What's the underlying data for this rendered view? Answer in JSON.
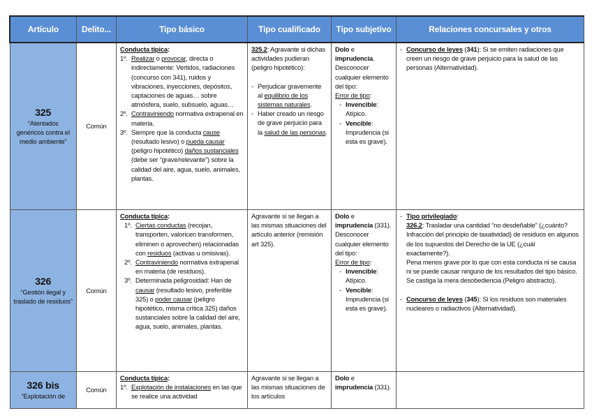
{
  "headers": [
    "Artículo",
    "Delito...",
    "Tipo básico",
    "Tipo cualificado",
    "Tipo subjetivo",
    "Relaciones concursales y otros"
  ],
  "colors": {
    "header_bg": "#5a8fd6",
    "article_bg": "#8db3e2"
  },
  "rows": [
    {
      "article": "325",
      "title": "“Atentados genéricos contra el medio ambiente”",
      "delito": "Común",
      "basico": [
        {
          "segs": [
            {
              "t": "Conducta típica",
              "u": 1,
              "b": 1
            },
            {
              "t": ":",
              "b": 1
            }
          ]
        },
        {
          "mk": "1º.",
          "segs": [
            {
              "t": "Realizar",
              "u": 1
            },
            {
              "t": " o "
            },
            {
              "t": "provocar",
              "u": 1
            },
            {
              "t": ", directa o indirectamente: Vertidos, radiaciones (concurso con 341), ruidos y vibraciones, inyecciones, depósitos, captaciones de aguas… sobre atmósfera, suelo, subsuelo, aguas…"
            }
          ]
        },
        {
          "mk": "2º.",
          "segs": [
            {
              "t": "Contraviniendo",
              "u": 1
            },
            {
              "t": " normativa extrapenal en materia."
            }
          ]
        },
        {
          "mk": "3º.",
          "segs": [
            {
              "t": "Siempre que la conducta "
            },
            {
              "t": "cause",
              "u": 1
            },
            {
              "t": " (resultado lesivo) o "
            },
            {
              "t": "pueda causar",
              "u": 1
            },
            {
              "t": " (peligro hipotético) "
            },
            {
              "t": "daños sustanciales",
              "u": 1
            },
            {
              "t": " (debe ser “grave/relevante”) sobre la calidad del aire, agua, suelo, animales, plantas."
            }
          ]
        }
      ],
      "cualificado": [
        {
          "segs": [
            {
              "t": "325.2",
              "u": 1,
              "b": 1
            },
            {
              "t": ": Agravante si dichas actividades pudieran (peligro hipotético):"
            }
          ]
        },
        {
          "gap": 1
        },
        {
          "mk": "-",
          "segs": [
            {
              "t": "Perjudicar gravemente al "
            },
            {
              "t": "equilibrio de los sistemas naturales",
              "u": 1
            },
            {
              "t": "."
            }
          ]
        },
        {
          "mk": "-",
          "segs": [
            {
              "t": "Haber creado un riesgo de grave perjuicio para la "
            },
            {
              "t": "salud de las personas",
              "u": 1
            },
            {
              "t": "."
            }
          ]
        }
      ],
      "subjetivo": [
        {
          "segs": [
            {
              "t": "Dolo",
              "b": 1
            },
            {
              "t": " e "
            },
            {
              "t": "imprudencia",
              "b": 1
            },
            {
              "t": ". Desconocer cualquier elemento del tipo:"
            }
          ]
        },
        {
          "segs": [
            {
              "t": "Error de tipo",
              "u": 1
            },
            {
              "t": ":"
            }
          ]
        },
        {
          "mk": "-",
          "ind": 1,
          "segs": [
            {
              "t": "Invencible",
              "b": 1
            },
            {
              "t": ": Atípico."
            }
          ]
        },
        {
          "mk": "-",
          "ind": 1,
          "segs": [
            {
              "t": "Vencible",
              "b": 1
            },
            {
              "t": ": Imprudencia (si esta es grave)."
            }
          ]
        }
      ],
      "relaciones": [
        {
          "mk": "-",
          "segs": [
            {
              "t": "Concurso de leyes",
              "u": 1,
              "b": 1
            },
            {
              "t": " ("
            },
            {
              "t": "341",
              "b": 1
            },
            {
              "t": "): Si se emiten radiaciones que creen un riesgo de grave perjuicio para la salud de las personas (Alternatividad)."
            }
          ]
        }
      ]
    },
    {
      "article": "326",
      "title": "“Gestión ilegal y traslado de residuos”",
      "delito": "Común",
      "basico": [
        {
          "segs": [
            {
              "t": "Conducta típica",
              "u": 1,
              "b": 1
            },
            {
              "t": ":",
              "b": 1
            }
          ]
        },
        {
          "mk": "1º.",
          "ind": 1,
          "segs": [
            {
              "t": "Ciertas conductas",
              "u": 1
            },
            {
              "t": " (recojan, transporten, valoricen transformen, eliminen o aprovechen) relacionadas con "
            },
            {
              "t": "residuos",
              "u": 1
            },
            {
              "t": " (activas u omisivas)."
            }
          ]
        },
        {
          "mk": "2º.",
          "ind": 1,
          "segs": [
            {
              "t": "Contraviniendo",
              "u": 1
            },
            {
              "t": " normativa extrapenal en materia (de residuos)."
            }
          ]
        },
        {
          "mk": "3º.",
          "ind": 1,
          "segs": [
            {
              "t": "Determinada peligrosidad: Han de "
            },
            {
              "t": "causar",
              "u": 1
            },
            {
              "t": " (resultado lesivo, preferible 325) o "
            },
            {
              "t": "poder causar",
              "u": 1
            },
            {
              "t": " (peligro hipotético, misma crítica 325) daños sustanciales sobre la calidad del aire, agua, suelo, animales, plantas."
            }
          ]
        }
      ],
      "cualificado": [
        {
          "segs": [
            {
              "t": "Agravante si se llegan a las mismas situaciones del artículo anterior (remisión art 325)."
            }
          ]
        }
      ],
      "subjetivo": [
        {
          "segs": [
            {
              "t": "Dolo",
              "b": 1
            },
            {
              "t": " e "
            },
            {
              "t": "imprudencia",
              "b": 1
            },
            {
              "t": " (331). Desconocer cualquier elemento del tipo:"
            }
          ]
        },
        {
          "segs": [
            {
              "t": "Error de tipo",
              "u": 1
            },
            {
              "t": ":"
            }
          ]
        },
        {
          "mk": "-",
          "ind": 1,
          "segs": [
            {
              "t": "Invencible",
              "b": 1
            },
            {
              "t": ": Atípico."
            }
          ]
        },
        {
          "mk": "-",
          "ind": 1,
          "segs": [
            {
              "t": "Vencible",
              "b": 1
            },
            {
              "t": ": Imprudencia (si esta es grave)."
            }
          ]
        }
      ],
      "relaciones": [
        {
          "mk": "-",
          "segs": [
            {
              "t": "Tipo privilegiado",
              "u": 1,
              "b": 1
            },
            {
              "t": ":"
            }
          ]
        },
        {
          "ind": 2,
          "segs": [
            {
              "t": "326.2",
              "u": 1,
              "b": 1
            },
            {
              "t": ": Trasladar una cantidad “no desdeñable” (¿cuánto? Infracción del principio de taxatividad) de residuos en algunos de los supuestos del Derecho de la UE (¿cuál exactamente?)."
            }
          ]
        },
        {
          "ind": 2,
          "segs": [
            {
              "t": "Pena menos grave por lo que con esta conducta ni se causa ni se puede causar ninguno de los resultados del tipo básico. Se castiga la mera desobediencia (Peligro abstracto)."
            }
          ]
        },
        {
          "gap": 1
        },
        {
          "mk": "-",
          "segs": [
            {
              "t": "Concurso de leyes",
              "u": 1,
              "b": 1
            },
            {
              "t": " ("
            },
            {
              "t": "345",
              "b": 1
            },
            {
              "t": "): Si los residuos son materiales nucleares o radiactivos (Alternatividad)."
            }
          ]
        }
      ]
    },
    {
      "article": "326 bis",
      "title": "“Explotación de",
      "delito": "Común",
      "basico": [
        {
          "segs": [
            {
              "t": "Conducta típica",
              "u": 1,
              "b": 1
            },
            {
              "t": ":",
              "b": 1
            }
          ]
        },
        {
          "mk": "1º.",
          "segs": [
            {
              "t": "Explotación de instalaciones",
              "u": 1
            },
            {
              "t": " en las que se realice una actividad"
            }
          ]
        }
      ],
      "cualificado": [
        {
          "segs": [
            {
              "t": "Agravante si se llegan a las mismas situaciones de los artículos"
            }
          ]
        }
      ],
      "subjetivo": [
        {
          "segs": [
            {
              "t": "Dolo",
              "b": 1
            },
            {
              "t": " e "
            },
            {
              "t": "imprudencia",
              "b": 1
            },
            {
              "t": " (331)."
            }
          ]
        }
      ],
      "relaciones": []
    }
  ]
}
